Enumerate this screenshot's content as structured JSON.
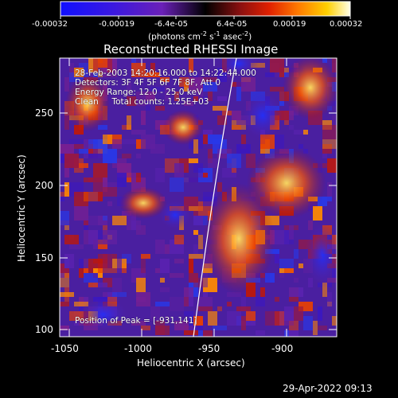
{
  "colorbar": {
    "tick_labels": [
      "-0.00032",
      "-0.00019",
      "-6.4e-05",
      "6.4e-05",
      "0.00019",
      "0.00032"
    ],
    "units_main": "(photons cm",
    "units_exp1": "-2",
    "units_mid": " s",
    "units_exp2": "-1",
    "units_end": " asec",
    "units_exp3": "-2",
    "units_close": ")"
  },
  "title": "Reconstructed RHESSI Image",
  "info": {
    "time_range": "28-Feb-2003 14:20:16.000 to 14:22:44.000",
    "detectors": "Detectors: 3F 4F 5F 6F 7F 8F, Att 0",
    "energy": "Energy Range: 12.0 - 25.0 keV",
    "clean": "Clean     Total counts: 1.25E+03",
    "peak": "Position of Peak = [-931,141]"
  },
  "axes": {
    "xlabel": "Heliocentric X (arcsec)",
    "ylabel": "Heliocentric Y (arcsec)",
    "xticks": [
      "-1050",
      "-1000",
      "-950",
      "-900"
    ],
    "yticks": [
      "250",
      "200",
      "150",
      "100"
    ]
  },
  "footer": {
    "timestamp": "29-Apr-2022 09:13"
  },
  "colors": {
    "background": "#000000",
    "foreground": "#ffffff"
  }
}
